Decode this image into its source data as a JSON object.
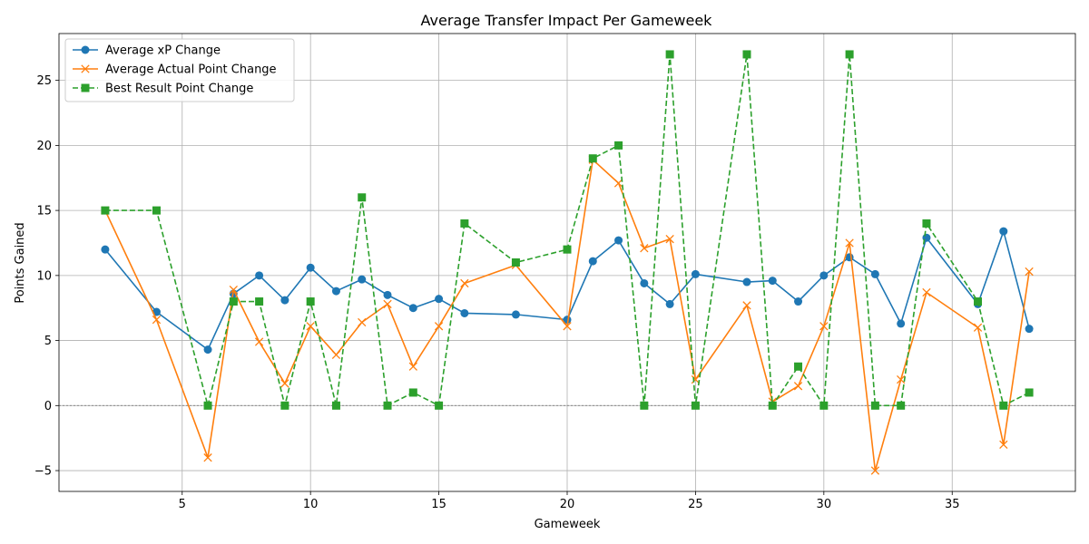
{
  "chart_data": {
    "type": "line",
    "title": "Average Transfer Impact Per Gameweek",
    "xlabel": "Gameweek",
    "ylabel": "Points Gained",
    "xlim": [
      0.2,
      39.8
    ],
    "ylim": [
      -6.6,
      28.6
    ],
    "xticks": [
      5,
      10,
      15,
      20,
      25,
      30,
      35
    ],
    "yticks": [
      -5,
      0,
      5,
      10,
      15,
      20,
      25
    ],
    "grid": true,
    "zero_line": true,
    "legend_position": "top-left",
    "series": [
      {
        "name": "Average xP Change",
        "color": "#1f77b4",
        "marker": "circle",
        "linestyle": "solid",
        "x": [
          2,
          4,
          6,
          7,
          8,
          9,
          10,
          11,
          12,
          13,
          14,
          15,
          16,
          18,
          20,
          21,
          22,
          23,
          24,
          25,
          27,
          28,
          29,
          30,
          31,
          32,
          33,
          34,
          36,
          37,
          38
        ],
        "y": [
          12.0,
          7.2,
          4.3,
          8.6,
          10.0,
          8.1,
          10.6,
          8.8,
          9.7,
          8.5,
          7.5,
          8.2,
          7.1,
          7.0,
          6.6,
          11.1,
          12.7,
          9.4,
          7.8,
          10.1,
          9.5,
          9.6,
          8.0,
          10.0,
          11.4,
          10.1,
          6.3,
          12.9,
          7.8,
          13.4,
          5.9
        ]
      },
      {
        "name": "Average Actual Point Change",
        "color": "#ff7f0e",
        "marker": "x",
        "linestyle": "solid",
        "x": [
          2,
          4,
          6,
          7,
          8,
          9,
          10,
          11,
          12,
          13,
          14,
          15,
          16,
          18,
          20,
          21,
          22,
          23,
          24,
          25,
          27,
          28,
          29,
          30,
          31,
          32,
          33,
          34,
          36,
          37,
          38
        ],
        "y": [
          15.0,
          6.6,
          -4.0,
          8.9,
          4.9,
          1.7,
          6.1,
          3.9,
          6.4,
          7.8,
          3.0,
          6.1,
          9.4,
          10.8,
          6.1,
          18.9,
          17.1,
          12.1,
          12.8,
          2.0,
          7.7,
          0.3,
          1.5,
          6.1,
          12.5,
          -5.0,
          2.0,
          8.7,
          6.0,
          -3.0,
          10.3
        ]
      },
      {
        "name": "Best Result Point Change",
        "color": "#2ca02c",
        "marker": "square",
        "linestyle": "dashed",
        "x": [
          2,
          4,
          6,
          7,
          8,
          9,
          10,
          11,
          12,
          13,
          14,
          15,
          16,
          18,
          20,
          21,
          22,
          23,
          24,
          25,
          27,
          28,
          29,
          30,
          31,
          32,
          33,
          34,
          36,
          37,
          38
        ],
        "y": [
          15,
          15,
          0,
          8,
          8,
          0,
          8,
          0,
          16,
          0,
          1,
          0,
          14,
          11,
          12,
          19,
          20,
          0,
          27,
          0,
          27,
          0,
          3,
          0,
          27,
          0,
          0,
          14,
          8,
          0,
          1
        ]
      }
    ]
  }
}
